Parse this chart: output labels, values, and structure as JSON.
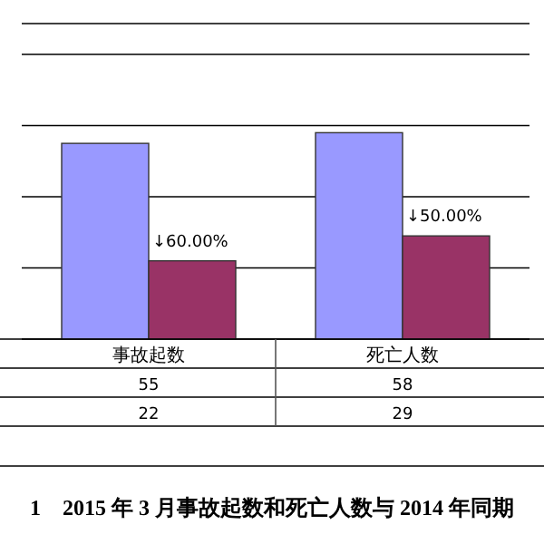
{
  "chart_data": {
    "type": "bar",
    "title": "1　2015 年 3 月事故起数和死亡人数与 2014 年同期",
    "categories": [
      "事故起数",
      "死亡人数"
    ],
    "series": [
      {
        "color": "#9999ff",
        "values": [
          55,
          58
        ]
      },
      {
        "color": "#993366",
        "values": [
          22,
          29
        ]
      }
    ],
    "data_labels": true,
    "annotations": [
      "↓60.00%",
      "↓50.00%"
    ],
    "ylim": [
      0,
      80
    ],
    "yticks": [
      {
        "value": 0,
        "label": null
      },
      {
        "value": 20,
        "label": null
      },
      {
        "value": 40,
        "label": null
      },
      {
        "value": 60,
        "label": null
      },
      {
        "value": 80,
        "label": null
      }
    ],
    "grid": "y"
  }
}
